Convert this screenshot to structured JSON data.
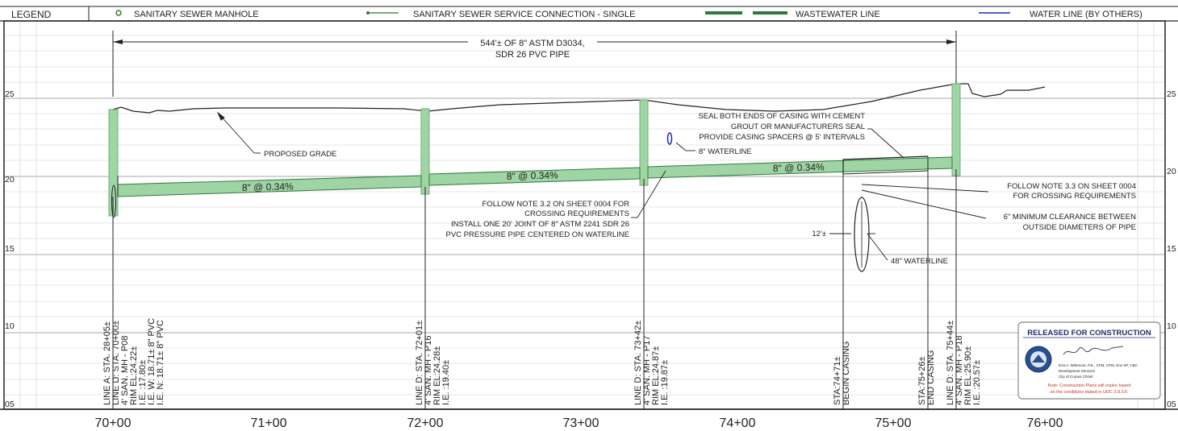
{
  "legend": {
    "title": "LEGEND",
    "items": [
      {
        "label": "SANITARY SEWER MANHOLE",
        "icon": "manhole-symbol-icon"
      },
      {
        "label": "SANITARY SEWER SERVICE CONNECTION - SINGLE",
        "icon": "service-connection-icon"
      },
      {
        "label": "WASTEWATER LINE",
        "icon": "wastewater-line-icon"
      },
      {
        "label": "WATER LINE (BY OTHERS)",
        "icon": "water-line-icon"
      }
    ]
  },
  "colors": {
    "pipe_fill": "#9fd4a4",
    "pipe_stroke": "#2f7a3a",
    "water": "#1a2fb0",
    "grid": "#cfcfcf"
  },
  "elevation_labels": {
    "left": [
      "25",
      "20",
      "15",
      "10",
      "05"
    ],
    "right": [
      "25",
      "20",
      "15",
      "10",
      "05"
    ]
  },
  "station_labels": [
    "70+00",
    "71+00",
    "72+00",
    "73+00",
    "74+00",
    "75+00",
    "76+00"
  ],
  "dimension": {
    "line1": "544'± OF 8\" ASTM D3034,",
    "line2": "SDR 26 PVC PIPE"
  },
  "slope_labels": [
    "8\" @ 0.34%",
    "8\" @ 0.34%",
    "8\" @ 0.34%"
  ],
  "notes": {
    "proposed_grade": "PROPOSED GRADE",
    "waterline_8": "8\" WATERLINE",
    "seal_casing": [
      "SEAL BOTH ENDS OF CASING WITH CEMENT",
      "GROUT OR MANUFACTURERS SEAL",
      "PROVIDE CASING SPACERS @ 5' INTERVALS"
    ],
    "note32": [
      "FOLLOW NOTE 3.2 ON SHEET 0004 FOR",
      "CROSSING REQUIREMENTS",
      "INSTALL ONE 20' JOINT OF 8\" ASTM 2241 SDR 26",
      "PVC PRESSURE PIPE CENTERED ON WATERLINE"
    ],
    "note33": [
      "FOLLOW NOTE 3.3 ON SHEET 0004",
      "FOR CROSSING REQUIREMENTS"
    ],
    "clearance": [
      "6\" MINIMUM CLEARANCE BETWEEN",
      "OUTSIDE DIAMETERS OF PIPE"
    ],
    "dim_12": "12'±",
    "waterline_48": "48\" WATERLINE"
  },
  "station_text": [
    [
      "LINE A: STA. 28+05±",
      "LINE D: STA. 70+00±",
      "4' SAN. MH - P08",
      "RIM EL:24.22±",
      "I.E. :17.80±",
      "I.E. W: 18.71± 8\" PVC",
      "I.E. N: 18.71± 8\" PVC"
    ],
    [
      "LINE D: STA. 72+01±",
      "4' SAN. MH - P16",
      "RIM EL:24.28±",
      "I.E. :19.40±"
    ],
    [
      "LINE D: STA. 73+42±",
      "4' SAN. MH - P17",
      "RIM EL:24.87±",
      "I.E. :19.87±"
    ],
    [
      "STA:74+71±",
      "BEGIN CASING"
    ],
    [
      "STA:75+26±",
      "END CASING"
    ],
    [
      "LINE D: STA. 75+44±",
      "4' SAN. MH - P18",
      "RIM EL:25.90±",
      "I.E. :20.57±"
    ]
  ],
  "stamp": {
    "title": "RELEASED FOR CONSTRUCTION",
    "lines": [
      "Eria A. Whitmore, P.E., CFM, CPM, Env SP, CBC",
      "Development Services",
      "City of Corpus Christi"
    ],
    "note": [
      "Note: Construction Plans will expire based",
      "on the conditions stated in UDC 3.8.3.F."
    ]
  }
}
